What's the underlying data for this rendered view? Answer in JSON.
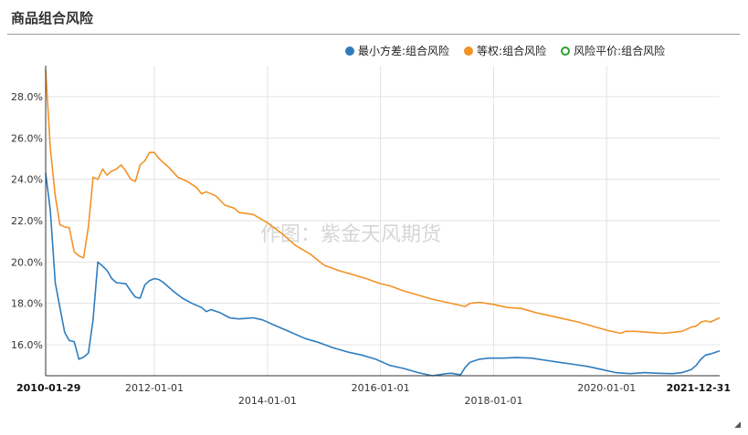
{
  "page": {
    "title": "商品组合风险"
  },
  "chart_data": {
    "type": "line",
    "title": "商品组合风险",
    "watermark": "作图：紫金天风期货",
    "legend_position": "top-right",
    "grid": true,
    "y_unit": "%",
    "ylim": [
      14.5,
      29.5
    ],
    "yticks": [
      "16.0%",
      "18.0%",
      "20.0%",
      "22.0%",
      "24.0%",
      "26.0%",
      "28.0%"
    ],
    "ytick_values": [
      16,
      18,
      20,
      22,
      24,
      26,
      28
    ],
    "xlim": [
      "2010-01-29",
      "2021-12-31"
    ],
    "xticks": [
      {
        "date": "2010-01-29",
        "label": "2010-01-29",
        "row": 0,
        "bold": true
      },
      {
        "date": "2012-01-01",
        "label": "2012-01-01",
        "row": 0,
        "bold": false
      },
      {
        "date": "2014-01-01",
        "label": "2014-01-01",
        "row": 1,
        "bold": false
      },
      {
        "date": "2016-01-01",
        "label": "2016-01-01",
        "row": 0,
        "bold": false
      },
      {
        "date": "2018-01-01",
        "label": "2018-01-01",
        "row": 1,
        "bold": false
      },
      {
        "date": "2020-01-01",
        "label": "2020-01-01",
        "row": 0,
        "bold": false
      },
      {
        "date": "2021-12-31",
        "label": "2021-12-31",
        "row": 0,
        "bold": true
      }
    ],
    "series": [
      {
        "name": "最小方差:组合风险",
        "color": "#2e7cbf",
        "marker": "filled",
        "points": [
          [
            "2010-01-29",
            24.3
          ],
          [
            "2010-02-28",
            22.5
          ],
          [
            "2010-04-01",
            19.0
          ],
          [
            "2010-05-01",
            17.8
          ],
          [
            "2010-06-01",
            16.6
          ],
          [
            "2010-07-01",
            16.2
          ],
          [
            "2010-08-01",
            16.15
          ],
          [
            "2010-09-01",
            15.3
          ],
          [
            "2010-10-01",
            15.4
          ],
          [
            "2010-11-01",
            15.6
          ],
          [
            "2010-12-01",
            17.2
          ],
          [
            "2011-01-01",
            20.0
          ],
          [
            "2011-02-01",
            19.8
          ],
          [
            "2011-03-01",
            19.6
          ],
          [
            "2011-04-01",
            19.2
          ],
          [
            "2011-05-01",
            19.0
          ],
          [
            "2011-07-01",
            18.95
          ],
          [
            "2011-08-01",
            18.6
          ],
          [
            "2011-09-01",
            18.3
          ],
          [
            "2011-10-01",
            18.25
          ],
          [
            "2011-11-01",
            18.9
          ],
          [
            "2011-12-01",
            19.1
          ],
          [
            "2012-01-01",
            19.2
          ],
          [
            "2012-02-01",
            19.15
          ],
          [
            "2012-03-01",
            19.0
          ],
          [
            "2012-05-01",
            18.6
          ],
          [
            "2012-07-01",
            18.25
          ],
          [
            "2012-09-01",
            18.0
          ],
          [
            "2012-11-01",
            17.8
          ],
          [
            "2012-12-01",
            17.6
          ],
          [
            "2013-01-01",
            17.7
          ],
          [
            "2013-03-01",
            17.55
          ],
          [
            "2013-05-01",
            17.3
          ],
          [
            "2013-07-01",
            17.25
          ],
          [
            "2013-10-01",
            17.3
          ],
          [
            "2013-12-01",
            17.2
          ],
          [
            "2014-03-01",
            16.9
          ],
          [
            "2014-06-01",
            16.6
          ],
          [
            "2014-09-01",
            16.3
          ],
          [
            "2014-12-01",
            16.1
          ],
          [
            "2015-03-01",
            15.85
          ],
          [
            "2015-06-01",
            15.65
          ],
          [
            "2015-09-01",
            15.5
          ],
          [
            "2015-12-01",
            15.3
          ],
          [
            "2016-03-01",
            15.0
          ],
          [
            "2016-06-01",
            14.85
          ],
          [
            "2016-09-01",
            14.65
          ],
          [
            "2016-12-01",
            14.5
          ],
          [
            "2017-03-01",
            14.6
          ],
          [
            "2017-04-01",
            14.62
          ],
          [
            "2017-06-01",
            14.55
          ],
          [
            "2017-07-01",
            14.9
          ],
          [
            "2017-08-01",
            15.15
          ],
          [
            "2017-10-01",
            15.3
          ],
          [
            "2017-12-01",
            15.35
          ],
          [
            "2018-03-01",
            15.35
          ],
          [
            "2018-06-01",
            15.38
          ],
          [
            "2018-09-01",
            15.35
          ],
          [
            "2018-12-01",
            15.25
          ],
          [
            "2019-03-01",
            15.15
          ],
          [
            "2019-06-01",
            15.05
          ],
          [
            "2019-09-01",
            14.95
          ],
          [
            "2019-12-01",
            14.8
          ],
          [
            "2020-03-01",
            14.65
          ],
          [
            "2020-06-01",
            14.6
          ],
          [
            "2020-09-01",
            14.65
          ],
          [
            "2020-12-01",
            14.62
          ],
          [
            "2021-03-01",
            14.6
          ],
          [
            "2021-05-01",
            14.65
          ],
          [
            "2021-07-01",
            14.8
          ],
          [
            "2021-08-01",
            15.0
          ],
          [
            "2021-09-01",
            15.3
          ],
          [
            "2021-10-01",
            15.5
          ],
          [
            "2021-11-01",
            15.55
          ],
          [
            "2021-12-31",
            15.7
          ]
        ]
      },
      {
        "name": "等权:组合风险",
        "color": "#f39225",
        "marker": "filled",
        "points": [
          [
            "2010-01-29",
            29.3
          ],
          [
            "2010-02-28",
            25.5
          ],
          [
            "2010-04-01",
            23.2
          ],
          [
            "2010-05-01",
            21.8
          ],
          [
            "2010-06-01",
            21.7
          ],
          [
            "2010-07-01",
            21.65
          ],
          [
            "2010-08-01",
            20.5
          ],
          [
            "2010-09-01",
            20.3
          ],
          [
            "2010-10-01",
            20.2
          ],
          [
            "2010-11-01",
            21.7
          ],
          [
            "2010-12-01",
            24.1
          ],
          [
            "2011-01-01",
            24.0
          ],
          [
            "2011-02-01",
            24.5
          ],
          [
            "2011-03-01",
            24.2
          ],
          [
            "2011-04-01",
            24.4
          ],
          [
            "2011-05-01",
            24.5
          ],
          [
            "2011-06-01",
            24.7
          ],
          [
            "2011-07-01",
            24.4
          ],
          [
            "2011-08-01",
            24.0
          ],
          [
            "2011-09-01",
            23.9
          ],
          [
            "2011-10-01",
            24.7
          ],
          [
            "2011-11-01",
            24.9
          ],
          [
            "2011-12-01",
            25.3
          ],
          [
            "2012-01-01",
            25.3
          ],
          [
            "2012-02-01",
            25.0
          ],
          [
            "2012-04-01",
            24.6
          ],
          [
            "2012-06-01",
            24.1
          ],
          [
            "2012-08-01",
            23.9
          ],
          [
            "2012-10-01",
            23.6
          ],
          [
            "2012-11-01",
            23.3
          ],
          [
            "2012-12-01",
            23.4
          ],
          [
            "2013-02-01",
            23.2
          ],
          [
            "2013-04-01",
            22.75
          ],
          [
            "2013-06-01",
            22.6
          ],
          [
            "2013-07-01",
            22.4
          ],
          [
            "2013-10-01",
            22.3
          ],
          [
            "2014-01-01",
            21.9
          ],
          [
            "2014-04-01",
            21.4
          ],
          [
            "2014-07-01",
            20.8
          ],
          [
            "2014-10-01",
            20.4
          ],
          [
            "2015-01-01",
            19.85
          ],
          [
            "2015-04-01",
            19.6
          ],
          [
            "2015-07-01",
            19.4
          ],
          [
            "2015-10-01",
            19.2
          ],
          [
            "2016-01-01",
            18.95
          ],
          [
            "2016-03-01",
            18.85
          ],
          [
            "2016-06-01",
            18.6
          ],
          [
            "2016-09-01",
            18.4
          ],
          [
            "2016-12-01",
            18.2
          ],
          [
            "2017-03-01",
            18.05
          ],
          [
            "2017-06-01",
            17.9
          ],
          [
            "2017-07-01",
            17.85
          ],
          [
            "2017-08-01",
            18.0
          ],
          [
            "2017-10-01",
            18.05
          ],
          [
            "2018-01-01",
            17.95
          ],
          [
            "2018-04-01",
            17.8
          ],
          [
            "2018-07-01",
            17.75
          ],
          [
            "2018-10-01",
            17.55
          ],
          [
            "2019-01-01",
            17.4
          ],
          [
            "2019-04-01",
            17.25
          ],
          [
            "2019-07-01",
            17.1
          ],
          [
            "2019-10-01",
            16.9
          ],
          [
            "2020-01-01",
            16.7
          ],
          [
            "2020-04-01",
            16.55
          ],
          [
            "2020-05-01",
            16.65
          ],
          [
            "2020-07-01",
            16.65
          ],
          [
            "2020-10-01",
            16.6
          ],
          [
            "2021-01-01",
            16.55
          ],
          [
            "2021-03-01",
            16.6
          ],
          [
            "2021-05-01",
            16.65
          ],
          [
            "2021-07-01",
            16.85
          ],
          [
            "2021-08-01",
            16.9
          ],
          [
            "2021-09-01",
            17.1
          ],
          [
            "2021-10-01",
            17.15
          ],
          [
            "2021-11-01",
            17.1
          ],
          [
            "2021-12-31",
            17.3
          ]
        ]
      },
      {
        "name": "风险平价:组合风险",
        "color": "#2ca02c",
        "marker": "hollow",
        "points": []
      }
    ]
  }
}
